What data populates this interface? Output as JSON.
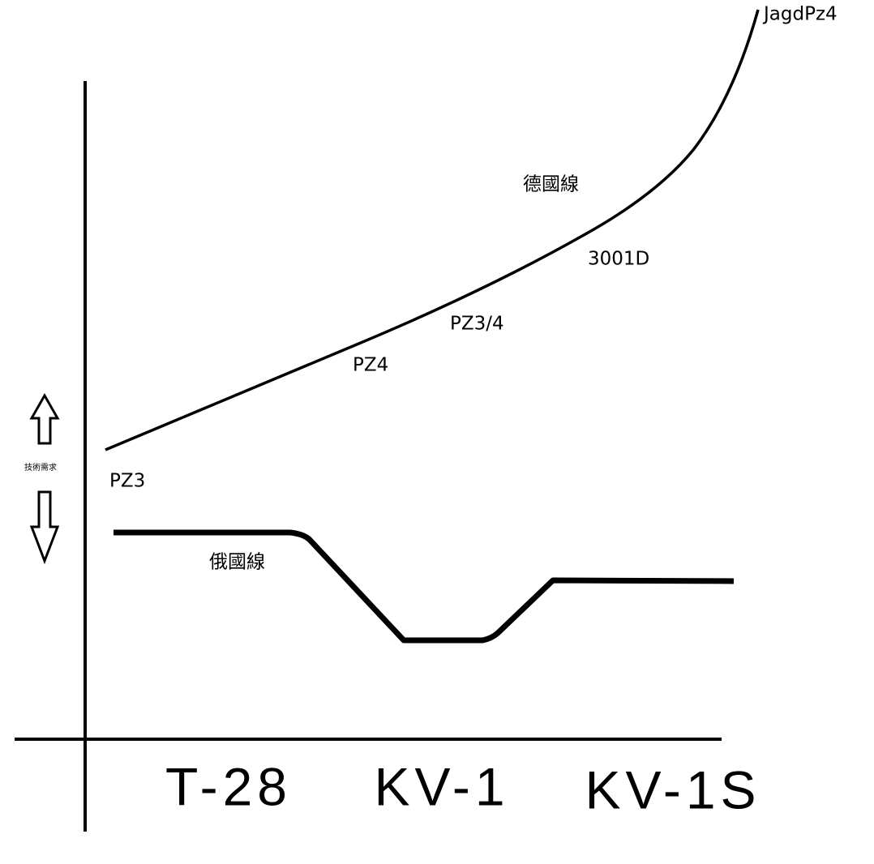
{
  "y_axis_label": "技術需求",
  "german_line": {
    "label": "德國線",
    "tanks": [
      "PZ3",
      "PZ4",
      "PZ3/4",
      "3001D",
      "JagdPz4"
    ]
  },
  "russian_line": {
    "label": "俄國線"
  },
  "x_categories": [
    "T-28",
    "KV-1",
    "KV-1S"
  ]
}
